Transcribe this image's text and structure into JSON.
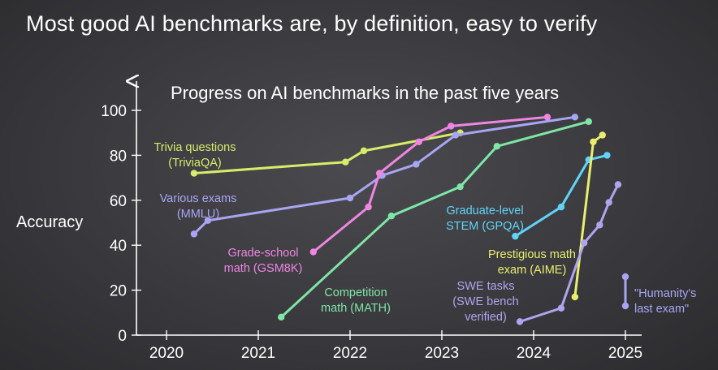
{
  "slide": {
    "title": "Most good AI benchmarks are, by definition, easy to verify"
  },
  "chart_data": {
    "type": "line",
    "title": "Progress on AI benchmarks in the past five years",
    "xlabel": "",
    "ylabel": "Accuracy",
    "x_ticks": [
      "2020",
      "2021",
      "2022",
      "2023",
      "2024",
      "2025"
    ],
    "y_ticks": [
      "0",
      "20",
      "40",
      "60",
      "80",
      "100"
    ],
    "xlim": [
      2019.75,
      2025.25
    ],
    "ylim": [
      0,
      100
    ],
    "grid": false,
    "series": [
      {
        "name": "Trivia questions (TriviaQA)",
        "label_lines": [
          "Trivia questions",
          "(TriviaQA)"
        ],
        "color": "#d8ec6a",
        "points": [
          [
            2020.3,
            72
          ],
          [
            2021.95,
            77
          ],
          [
            2022.15,
            82
          ],
          [
            2023.2,
            90
          ]
        ]
      },
      {
        "name": "Various exams (MMLU)",
        "label_lines": [
          "Various exams",
          "(MMLU)"
        ],
        "color": "#a9a5f3",
        "points": [
          [
            2020.3,
            45
          ],
          [
            2020.45,
            51
          ],
          [
            2022.0,
            61
          ],
          [
            2022.35,
            71
          ],
          [
            2022.72,
            76
          ],
          [
            2023.15,
            89
          ],
          [
            2024.45,
            97
          ]
        ]
      },
      {
        "name": "Grade-school math (GSM8K)",
        "label_lines": [
          "Grade-school",
          "math (GSM8K)"
        ],
        "color": "#ef86e2",
        "points": [
          [
            2021.6,
            37
          ],
          [
            2022.2,
            57
          ],
          [
            2022.32,
            72
          ],
          [
            2022.75,
            86
          ],
          [
            2023.1,
            93
          ],
          [
            2024.15,
            97
          ]
        ]
      },
      {
        "name": "Competition math (MATH)",
        "label_lines": [
          "Competition",
          "math (MATH)"
        ],
        "color": "#7fe6a6",
        "points": [
          [
            2021.25,
            8
          ],
          [
            2022.45,
            53
          ],
          [
            2023.2,
            66
          ],
          [
            2023.6,
            84
          ],
          [
            2024.6,
            95
          ]
        ]
      },
      {
        "name": "Graduate-level STEM (GPQA)",
        "label_lines": [
          "Graduate-level",
          "STEM (GPQA)"
        ],
        "color": "#5fd4f8",
        "points": [
          [
            2023.8,
            44
          ],
          [
            2024.3,
            57
          ],
          [
            2024.6,
            78
          ],
          [
            2024.8,
            80
          ]
        ]
      },
      {
        "name": "Prestigious math exam (AIME)",
        "label_lines": [
          "Prestigious math",
          "exam (AIME)"
        ],
        "color": "#eaee6e",
        "points": [
          [
            2024.45,
            17
          ],
          [
            2024.65,
            86
          ],
          [
            2024.75,
            89
          ]
        ]
      },
      {
        "name": "SWE tasks (SWE bench verified)",
        "label_lines": [
          "SWE tasks",
          "(SWE bench",
          "verified)"
        ],
        "color": "#b0a4ee",
        "points": [
          [
            2023.85,
            6
          ],
          [
            2024.3,
            12
          ],
          [
            2024.55,
            41
          ],
          [
            2024.72,
            49
          ],
          [
            2024.82,
            59
          ],
          [
            2024.92,
            67
          ]
        ]
      },
      {
        "name": "\"Humanity's last exam\"",
        "label_lines": [
          "\"Humanity's",
          "last exam\""
        ],
        "color": "#a7a4f2",
        "points": [
          [
            2025.0,
            13
          ],
          [
            2025.0,
            26
          ]
        ]
      }
    ]
  }
}
